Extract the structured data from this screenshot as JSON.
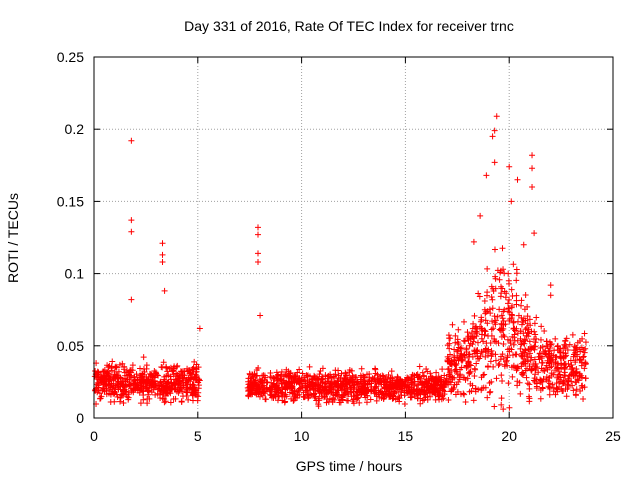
{
  "chart_data": {
    "type": "scatter",
    "title": "Day 331 of 2016, Rate Of TEC Index for receiver trnc",
    "xlabel": "GPS time / hours",
    "ylabel": "ROTI / TECUs",
    "xlim": [
      0,
      25
    ],
    "ylim": [
      0,
      0.25
    ],
    "grid": true,
    "marker": "+",
    "colors": {
      "series": "#ff0000",
      "axes": "#000000",
      "grid": "#a0a0a0"
    },
    "x_ticks": [
      0,
      5,
      10,
      15,
      20,
      25
    ],
    "x_tick_labels": [
      "0",
      "5",
      "10",
      "15",
      "20",
      "25"
    ],
    "y_ticks": [
      0,
      0.05,
      0.1,
      0.15,
      0.2,
      0.25
    ],
    "y_tick_labels": [
      "0",
      "0.05",
      "0.1",
      "0.15",
      "0.2",
      "0.25"
    ],
    "series": [
      {
        "name": "ROTI",
        "segments": [
          {
            "x_start": 0.0,
            "x_end": 5.1,
            "baseline": 0.025,
            "spread": 0.012
          },
          {
            "x_start": 7.4,
            "x_end": 17.0,
            "baseline": 0.022,
            "spread": 0.01
          },
          {
            "x_start": 17.0,
            "x_end": 23.7,
            "baseline": 0.035,
            "spread": 0.02
          }
        ],
        "notable_points": [
          {
            "x": 1.8,
            "y": 0.192
          },
          {
            "x": 1.8,
            "y": 0.137
          },
          {
            "x": 1.8,
            "y": 0.129
          },
          {
            "x": 1.8,
            "y": 0.082
          },
          {
            "x": 3.3,
            "y": 0.121
          },
          {
            "x": 3.3,
            "y": 0.113
          },
          {
            "x": 3.3,
            "y": 0.108
          },
          {
            "x": 3.4,
            "y": 0.088
          },
          {
            "x": 5.1,
            "y": 0.062
          },
          {
            "x": 7.9,
            "y": 0.132
          },
          {
            "x": 7.9,
            "y": 0.127
          },
          {
            "x": 7.9,
            "y": 0.114
          },
          {
            "x": 7.9,
            "y": 0.108
          },
          {
            "x": 8.0,
            "y": 0.071
          },
          {
            "x": 19.4,
            "y": 0.209
          },
          {
            "x": 19.3,
            "y": 0.199
          },
          {
            "x": 19.2,
            "y": 0.195
          },
          {
            "x": 19.3,
            "y": 0.177
          },
          {
            "x": 18.9,
            "y": 0.168
          },
          {
            "x": 20.0,
            "y": 0.174
          },
          {
            "x": 21.1,
            "y": 0.182
          },
          {
            "x": 21.1,
            "y": 0.173
          },
          {
            "x": 20.4,
            "y": 0.165
          },
          {
            "x": 20.1,
            "y": 0.15
          },
          {
            "x": 21.1,
            "y": 0.16
          },
          {
            "x": 18.6,
            "y": 0.14
          },
          {
            "x": 18.3,
            "y": 0.122
          },
          {
            "x": 21.2,
            "y": 0.128
          },
          {
            "x": 20.7,
            "y": 0.12
          },
          {
            "x": 22.0,
            "y": 0.092
          },
          {
            "x": 22.0,
            "y": 0.085
          }
        ]
      }
    ]
  }
}
